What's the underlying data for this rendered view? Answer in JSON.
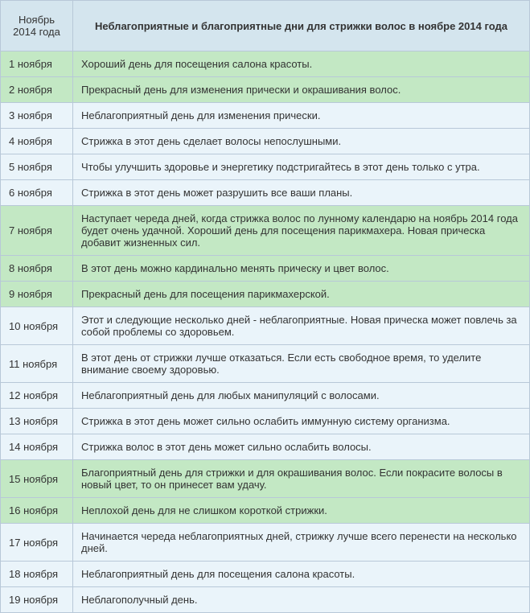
{
  "header": {
    "date_col": "Ноябрь 2014 года",
    "desc_col": "Неблагоприятные и благоприятные дни для стрижки волос в ноябре 2014 года"
  },
  "colors": {
    "header_bg": "#d4e5ee",
    "green_bg": "#c3e8c4",
    "blue_bg": "#eaf4fa",
    "border": "#b8c8d8"
  },
  "rows": [
    {
      "date": "1 ноября",
      "text": "Хороший день для посещения салона красоты.",
      "tone": "green"
    },
    {
      "date": "2 ноября",
      "text": "Прекрасный день для изменения прически и окрашивания волос.",
      "tone": "green"
    },
    {
      "date": "3 ноября",
      "text": "Неблагоприятный день для изменения прически.",
      "tone": "blue"
    },
    {
      "date": "4 ноября",
      "text": "Стрижка в этот день сделает волосы непослушными.",
      "tone": "blue"
    },
    {
      "date": "5 ноября",
      "text": "Чтобы улучшить здоровье и энергетику подстригайтесь в этот день только с утра.",
      "tone": "blue"
    },
    {
      "date": "6 ноября",
      "text": "Стрижка в этот день может разрушить все ваши планы.",
      "tone": "blue"
    },
    {
      "date": "7 ноября",
      "text": "Наступает череда дней, когда стрижка волос по лунному календарю на ноябрь 2014 года будет очень удачной. Хороший день для посещения парикмахера. Новая прическа добавит жизненных сил.",
      "tone": "green"
    },
    {
      "date": "8 ноября",
      "text": "В этот день можно кардинально менять прическу и цвет волос.",
      "tone": "green"
    },
    {
      "date": "9 ноября",
      "text": "Прекрасный день для посещения парикмахерской.",
      "tone": "green"
    },
    {
      "date": "10 ноября",
      "text": "Этот и следующие несколько дней - неблагоприятные. Новая прическа может повлечь за собой проблемы со здоровьем.",
      "tone": "blue"
    },
    {
      "date": "11 ноября",
      "text": "В этот день от стрижки лучше отказаться. Если есть свободное время, то уделите внимание своему здоровью.",
      "tone": "blue"
    },
    {
      "date": "12 ноября",
      "text": "Неблагоприятный день для любых манипуляций с волосами.",
      "tone": "blue"
    },
    {
      "date": "13 ноября",
      "text": "Стрижка в этот день может сильно ослабить иммунную систему организма.",
      "tone": "blue"
    },
    {
      "date": "14 ноября",
      "text": "Стрижка волос в этот день может сильно ослабить волосы.",
      "tone": "blue"
    },
    {
      "date": "15 ноября",
      "text": "Благоприятный день для стрижки и для окрашивания волос. Если покрасите волосы в новый цвет, то он принесет вам удачу.",
      "tone": "green"
    },
    {
      "date": "16 ноября",
      "text": "Неплохой день для не слишком короткой стрижки.",
      "tone": "green"
    },
    {
      "date": "17 ноября",
      "text": "Начинается череда неблагоприятных дней, стрижку лучше всего перенести на несколько дней.",
      "tone": "blue"
    },
    {
      "date": "18 ноября",
      "text": "Неблагоприятный день для посещения салона красоты.",
      "tone": "blue"
    },
    {
      "date": "19 ноября",
      "text": "Неблагополучный день.",
      "tone": "blue"
    }
  ]
}
